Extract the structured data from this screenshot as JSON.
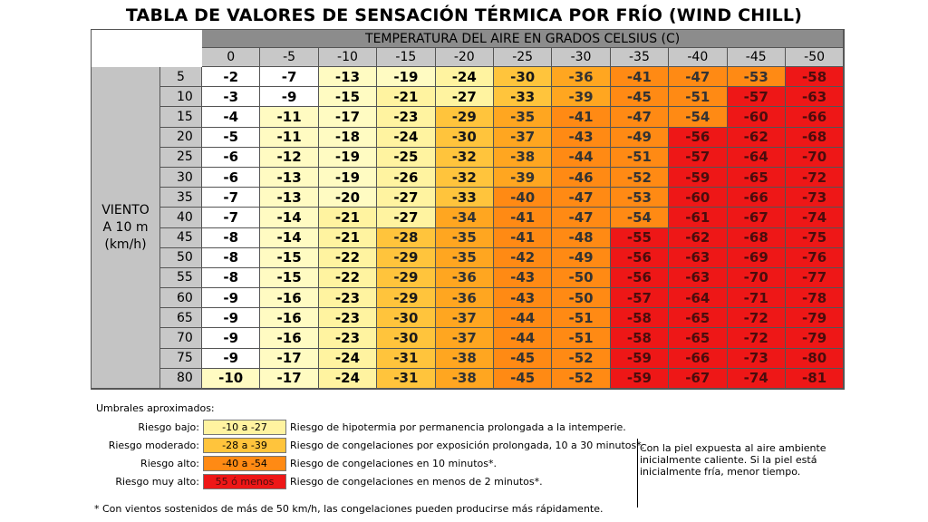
{
  "title": "TABLA DE VALORES DE SENSACIÓN TÉRMICA POR FRÍO (WIND CHILL)",
  "header_temp": "TEMPERATURA DEL AIRE EN GRADOS CELSIUS (C)",
  "wind_label": [
    "VIENTO",
    "A 10 m",
    "(km/h)"
  ],
  "temperatures": [
    "0",
    "-5",
    "-10",
    "-15",
    "-20",
    "-25",
    "-30",
    "-35",
    "-40",
    "-45",
    "-50"
  ],
  "winds": [
    "5",
    "10",
    "15",
    "20",
    "25",
    "30",
    "35",
    "40",
    "45",
    "50",
    "55",
    "60",
    "65",
    "70",
    "75",
    "80"
  ],
  "rows": [
    [
      -2,
      -7,
      -13,
      -19,
      -24,
      -30,
      -36,
      -41,
      -47,
      -53,
      -58
    ],
    [
      -3,
      -9,
      -15,
      -21,
      -27,
      -33,
      -39,
      -45,
      -51,
      -57,
      -63
    ],
    [
      -4,
      -11,
      -17,
      -23,
      -29,
      -35,
      -41,
      -47,
      -54,
      -60,
      -66
    ],
    [
      -5,
      -11,
      -18,
      -24,
      -30,
      -37,
      -43,
      -49,
      -56,
      -62,
      -68
    ],
    [
      -6,
      -12,
      -19,
      -25,
      -32,
      -38,
      -44,
      -51,
      -57,
      -64,
      -70
    ],
    [
      -6,
      -13,
      -19,
      -26,
      -32,
      -39,
      -46,
      -52,
      -59,
      -65,
      -72
    ],
    [
      -7,
      -13,
      -20,
      -27,
      -33,
      -40,
      -47,
      -53,
      -60,
      -66,
      -73
    ],
    [
      -7,
      -14,
      -21,
      -27,
      -34,
      -41,
      -47,
      -54,
      -61,
      -67,
      -74
    ],
    [
      -8,
      -14,
      -21,
      -28,
      -35,
      -41,
      -48,
      -55,
      -62,
      -68,
      -75
    ],
    [
      -8,
      -15,
      -22,
      -29,
      -35,
      -42,
      -49,
      -56,
      -63,
      -69,
      -76
    ],
    [
      -8,
      -15,
      -22,
      -29,
      -36,
      -43,
      -50,
      -56,
      -63,
      -70,
      -77
    ],
    [
      -9,
      -16,
      -23,
      -29,
      -36,
      -43,
      -50,
      -57,
      -64,
      -71,
      -78
    ],
    [
      -9,
      -16,
      -23,
      -30,
      -37,
      -44,
      -51,
      -58,
      -65,
      -72,
      -79
    ],
    [
      -9,
      -16,
      -23,
      -30,
      -37,
      -44,
      -51,
      -58,
      -65,
      -72,
      -79
    ],
    [
      -9,
      -17,
      -24,
      -31,
      -38,
      -45,
      -52,
      -59,
      -66,
      -73,
      -80
    ],
    [
      -10,
      -17,
      -24,
      -31,
      -38,
      -45,
      -52,
      -59,
      -67,
      -74,
      -81
    ]
  ],
  "colors": {
    "c-w": "#ffffff",
    "c-y1": "#fffbc2",
    "c-y2": "#fff3a0",
    "c-o1": "#ffc43c",
    "c-o2": "#ffa620",
    "c-o3": "#ff8a14",
    "c-r": "#ee1717"
  },
  "legend": {
    "title": "Umbrales aproximados:",
    "items": [
      {
        "label": "Riesgo bajo:",
        "range": "-10 a -27",
        "desc": "Riesgo de hipotermia por permanencia prolongada a la intemperie.",
        "color": "#fff3a0"
      },
      {
        "label": "Riesgo moderado:",
        "range": "-28 a -39",
        "desc": "Riesgo de congelaciones por exposición prolongada, 10 a 30 minutos*.",
        "color": "#ffc43c"
      },
      {
        "label": "Riesgo alto:",
        "range": "-40 a -54",
        "desc": "Riesgo de congelaciones en 10 minutos*.",
        "color": "#ff8a14"
      },
      {
        "label": "Riesgo muy alto:",
        "range": "55 ó menos",
        "desc": "Riesgo de congelaciones en menos de 2 minutos*.",
        "color": "#ee1717"
      }
    ],
    "note": "Con la piel expuesta al aire ambiente inicialmente caliente. Si la piel está inicialmente fría, menor tiempo."
  },
  "footnote": "* Con vientos sostenidos de más de 50 km/h, las congelaciones pueden producirse más rápidamente."
}
